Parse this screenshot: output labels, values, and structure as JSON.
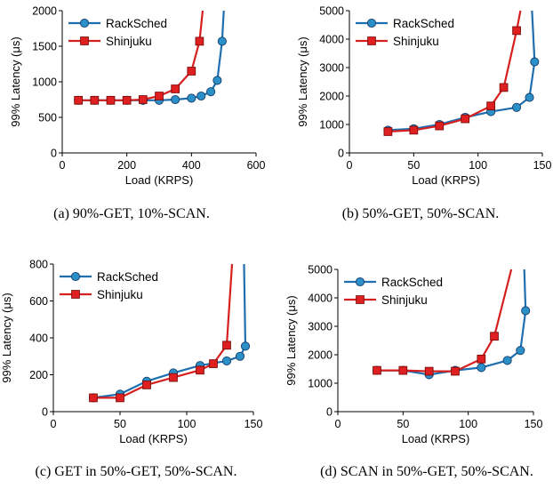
{
  "colors": {
    "rack": "#1f6fb0",
    "rack_marker": "#2b8fc8",
    "shin": "#d62020",
    "shin_marker": "#e02020",
    "axis": "#000000"
  },
  "chart_data": [
    {
      "type": "line",
      "caption": "(a) 90%-GET, 10%-SCAN.",
      "xlabel": "Load (KRPS)",
      "ylabel": "99% Latency (μs)",
      "xlim": [
        0,
        600
      ],
      "ylim": [
        0,
        2000
      ],
      "xticks": [
        0,
        200,
        400,
        600
      ],
      "yticks": [
        0,
        500,
        1000,
        1500,
        2000
      ],
      "legend": "top-left",
      "series": [
        {
          "name": "RackSched",
          "x": [
            50,
            100,
            150,
            200,
            250,
            300,
            350,
            400,
            430,
            460,
            480,
            495,
            500
          ],
          "y": [
            740,
            740,
            740,
            740,
            740,
            740,
            750,
            770,
            800,
            860,
            1020,
            1570,
            2000
          ],
          "marker_count": 12
        },
        {
          "name": "Shinjuku",
          "x": [
            50,
            100,
            150,
            200,
            250,
            300,
            350,
            400,
            425,
            435
          ],
          "y": [
            740,
            740,
            740,
            740,
            750,
            800,
            900,
            1150,
            1570,
            2000
          ],
          "marker_count": 9
        }
      ]
    },
    {
      "type": "line",
      "caption": "(b) 50%-GET, 50%-SCAN.",
      "xlabel": "Load (KRPS)",
      "ylabel": "99% Latency (μs)",
      "xlim": [
        0,
        150
      ],
      "ylim": [
        0,
        5000
      ],
      "xticks": [
        0,
        50,
        100,
        150
      ],
      "yticks": [
        0,
        1000,
        2000,
        3000,
        4000,
        5000
      ],
      "legend": "top-left",
      "series": [
        {
          "name": "RackSched",
          "x": [
            30,
            50,
            70,
            90,
            110,
            130,
            140,
            144,
            142
          ],
          "y": [
            800,
            850,
            1000,
            1250,
            1450,
            1600,
            1950,
            3200,
            5000
          ],
          "marker_count": 8
        },
        {
          "name": "Shinjuku",
          "x": [
            30,
            50,
            70,
            90,
            110,
            120,
            130,
            133
          ],
          "y": [
            750,
            800,
            950,
            1200,
            1650,
            2300,
            4300,
            5000
          ],
          "marker_count": 7
        }
      ]
    },
    {
      "type": "line",
      "caption": "(c) GET in 50%-GET, 50%-SCAN.",
      "xlabel": "Load (KRPS)",
      "ylabel": "99% Latency (μs)",
      "xlim": [
        0,
        150
      ],
      "ylim": [
        0,
        800
      ],
      "xticks": [
        0,
        50,
        100,
        150
      ],
      "yticks": [
        0,
        200,
        400,
        600,
        800
      ],
      "legend": "top-left",
      "series": [
        {
          "name": "RackSched",
          "x": [
            30,
            50,
            70,
            90,
            110,
            130,
            140,
            144,
            143
          ],
          "y": [
            75,
            95,
            165,
            210,
            250,
            275,
            300,
            355,
            800
          ],
          "marker_count": 8
        },
        {
          "name": "Shinjuku",
          "x": [
            30,
            50,
            70,
            90,
            110,
            120,
            130,
            134
          ],
          "y": [
            75,
            75,
            145,
            185,
            225,
            260,
            360,
            800
          ],
          "marker_count": 7
        }
      ]
    },
    {
      "type": "line",
      "caption": "(d) SCAN in 50%-GET, 50%-SCAN.",
      "xlabel": "Load (KRPS)",
      "ylabel": "99% Latency (μs)",
      "xlim": [
        0,
        150
      ],
      "ylim": [
        0,
        5000
      ],
      "xticks": [
        0,
        50,
        100,
        150
      ],
      "yticks": [
        0,
        1000,
        2000,
        3000,
        4000,
        5000
      ],
      "legend": "top-left",
      "series": [
        {
          "name": "RackSched",
          "x": [
            30,
            50,
            70,
            90,
            110,
            130,
            140,
            144,
            143
          ],
          "y": [
            1450,
            1450,
            1300,
            1450,
            1550,
            1800,
            2150,
            3550,
            5000
          ],
          "marker_count": 8
        },
        {
          "name": "Shinjuku",
          "x": [
            30,
            50,
            70,
            90,
            110,
            120,
            133
          ],
          "y": [
            1450,
            1450,
            1420,
            1420,
            1850,
            2650,
            5000
          ],
          "marker_count": 6
        }
      ]
    }
  ]
}
